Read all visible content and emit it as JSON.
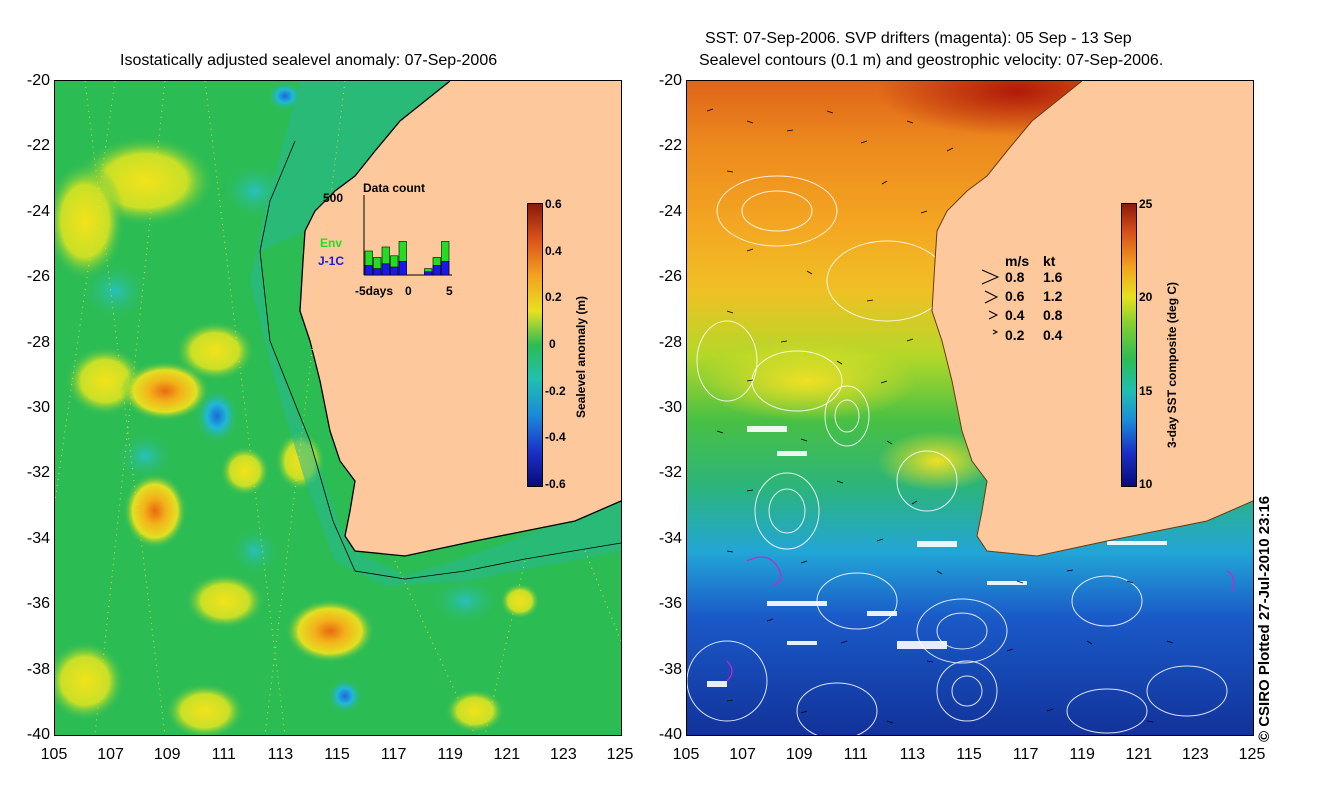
{
  "left_panel": {
    "title": "Isostatically adjusted sealevel anomaly: 07-Sep-2006",
    "y_ticks": [
      "-20",
      "-22",
      "-24",
      "-26",
      "-28",
      "-30",
      "-32",
      "-34",
      "-36",
      "-38",
      "-40"
    ],
    "x_ticks": [
      "105",
      "107",
      "109",
      "111",
      "113",
      "115",
      "117",
      "119",
      "121",
      "123",
      "125"
    ],
    "colorbar": {
      "label": "Sealevel anomaly (m)",
      "ticks": [
        "0.6",
        "0.4",
        "0.2",
        "0",
        "-0.2",
        "-0.4",
        "-0.6"
      ]
    },
    "inset": {
      "title": "Data count",
      "y_max": "500",
      "x_labels": [
        "-5days",
        "0",
        "5"
      ],
      "legend_env": "Env",
      "legend_j1c": "J-1C",
      "env_color": "#22dd22",
      "j1c_color": "#1818ee",
      "env_counts": [
        150,
        110,
        175,
        120,
        210,
        0,
        0,
        40,
        110,
        210
      ],
      "j1c_counts": [
        60,
        40,
        70,
        50,
        85,
        0,
        0,
        20,
        60,
        85
      ]
    }
  },
  "right_panel": {
    "title_line1": "SST: 07-Sep-2006. SVP drifters (magenta): 05 Sep - 13 Sep",
    "title_line2": "Sealevel contours (0.1 m) and geostrophic velocity: 07-Sep-2006.",
    "y_ticks": [
      "-20",
      "-22",
      "-24",
      "-26",
      "-28",
      "-30",
      "-32",
      "-34",
      "-36",
      "-38",
      "-40"
    ],
    "x_ticks": [
      "105",
      "107",
      "109",
      "111",
      "113",
      "115",
      "117",
      "119",
      "121",
      "123",
      "125"
    ],
    "colorbar": {
      "label": "3-day SST composite (deg C)",
      "ticks": [
        "25",
        "20",
        "15",
        "10"
      ]
    },
    "velocity_legend": {
      "header_ms": "m/s",
      "header_kt": "kt",
      "rows": [
        {
          "ms": "0.8",
          "kt": "1.6"
        },
        {
          "ms": "0.6",
          "kt": "1.2"
        },
        {
          "ms": "0.4",
          "kt": "0.8"
        },
        {
          "ms": "0.2",
          "kt": "0.4"
        }
      ]
    }
  },
  "colors": {
    "land": "#fcc89c",
    "ocean_green": "#2cbc54",
    "coast_line": "#000000"
  },
  "copyright": "© CSIRO Plotted 27-Jul-2010 23:16"
}
